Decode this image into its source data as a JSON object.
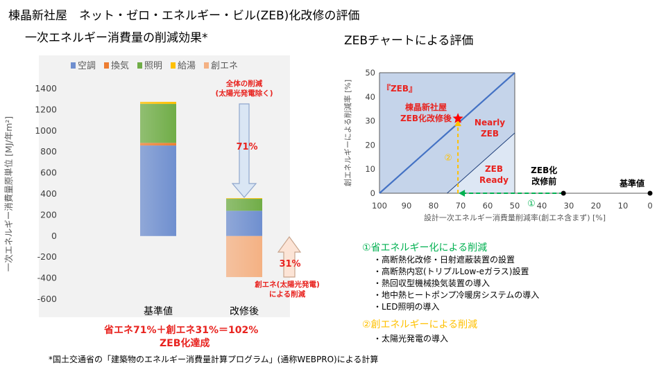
{
  "page": {
    "title": "棟晶新社屋　ネット・ゼロ・エネルギー・ビル(ZEB)化改修の評価",
    "left_title": "一次エネルギー消費量の削減効果*",
    "right_title": "ZEBチャートによる評価",
    "footnote": "*国土交通省の「建築物のエネルギー消費量計算プログラム」(通称WEBPRO)による計算",
    "summary_line1": "省エネ71%＋創エネ31%＝102%",
    "summary_line2": "ZEB化達成"
  },
  "chart_data": [
    {
      "type": "bar",
      "stacked": true,
      "categories": [
        "基準値",
        "改修後"
      ],
      "series": [
        {
          "name": "空調",
          "color": "#6f8fcf",
          "values": [
            860,
            240
          ]
        },
        {
          "name": "換気",
          "color": "#ed7d31",
          "values": [
            25,
            0
          ]
        },
        {
          "name": "照明",
          "color": "#70ad47",
          "values": [
            370,
            115
          ]
        },
        {
          "name": "給湯",
          "color": "#ffc000",
          "values": [
            20,
            5
          ]
        },
        {
          "name": "創エネ",
          "color": "#f4b183",
          "values": [
            0,
            -390
          ]
        }
      ],
      "ylabel": "一次エネルギー消費量原単位 [MJ/年m²]",
      "ylim": [
        -600,
        1400
      ],
      "yticks": [
        "1400",
        "1200",
        "1000",
        "800",
        "600",
        "400",
        "200",
        "0",
        "-200",
        "-400",
        "-600"
      ],
      "legend_position": "top",
      "annotations": {
        "arrow1_title": [
          "全体の削減",
          "(太陽光発電除く)"
        ],
        "arrow1_value": "71%",
        "arrow2_value": "31%",
        "arrow2_title": [
          "創エネ(太陽光発電)",
          "による削減"
        ]
      }
    },
    {
      "type": "scatter",
      "xlabel": "設計一次エネルギー消費量削減率(創エネ含まず) [%]",
      "ylabel": "創エネルギーによる削減率 [%]",
      "xlim": [
        100,
        0
      ],
      "ylim": [
        0,
        50
      ],
      "xticks": [
        "100",
        "90",
        "80",
        "70",
        "60",
        "50",
        "40",
        "30",
        "20",
        "10",
        "0"
      ],
      "yticks": [
        "50",
        "40",
        "30",
        "20",
        "10",
        "0"
      ],
      "regions": [
        "『ZEB』",
        "Nearly ZEB",
        "ZEB Ready"
      ],
      "points": [
        {
          "label": "棟晶新社屋 ZEB化改修後",
          "x": 71,
          "y": 31
        },
        {
          "label": "ZEB化 改修前",
          "x": 32,
          "y": 0
        },
        {
          "label": "基準値",
          "x": 0,
          "y": 0
        }
      ],
      "step_markers": [
        "①",
        "②"
      ]
    }
  ],
  "measures": {
    "section1_title": "①省エネルギー化による削減",
    "section1_items": [
      "・高断熱化改修・日射遮蔽装置の設置",
      "・高断熱内窓(トリプルLow-eガラス)設置",
      "・熱回収型機械換気装置の導入",
      "・地中熱ヒートポンプ冷暖房システムの導入",
      "・LED照明の導入"
    ],
    "section2_title": "②創エネルギーによる削減",
    "section2_items": [
      "・太陽光発電の導入"
    ]
  },
  "colors": {
    "accent_red": "#e8231f",
    "green": "#00b050",
    "orange_label": "#ffc000",
    "zeb_line": "#4472c4"
  }
}
